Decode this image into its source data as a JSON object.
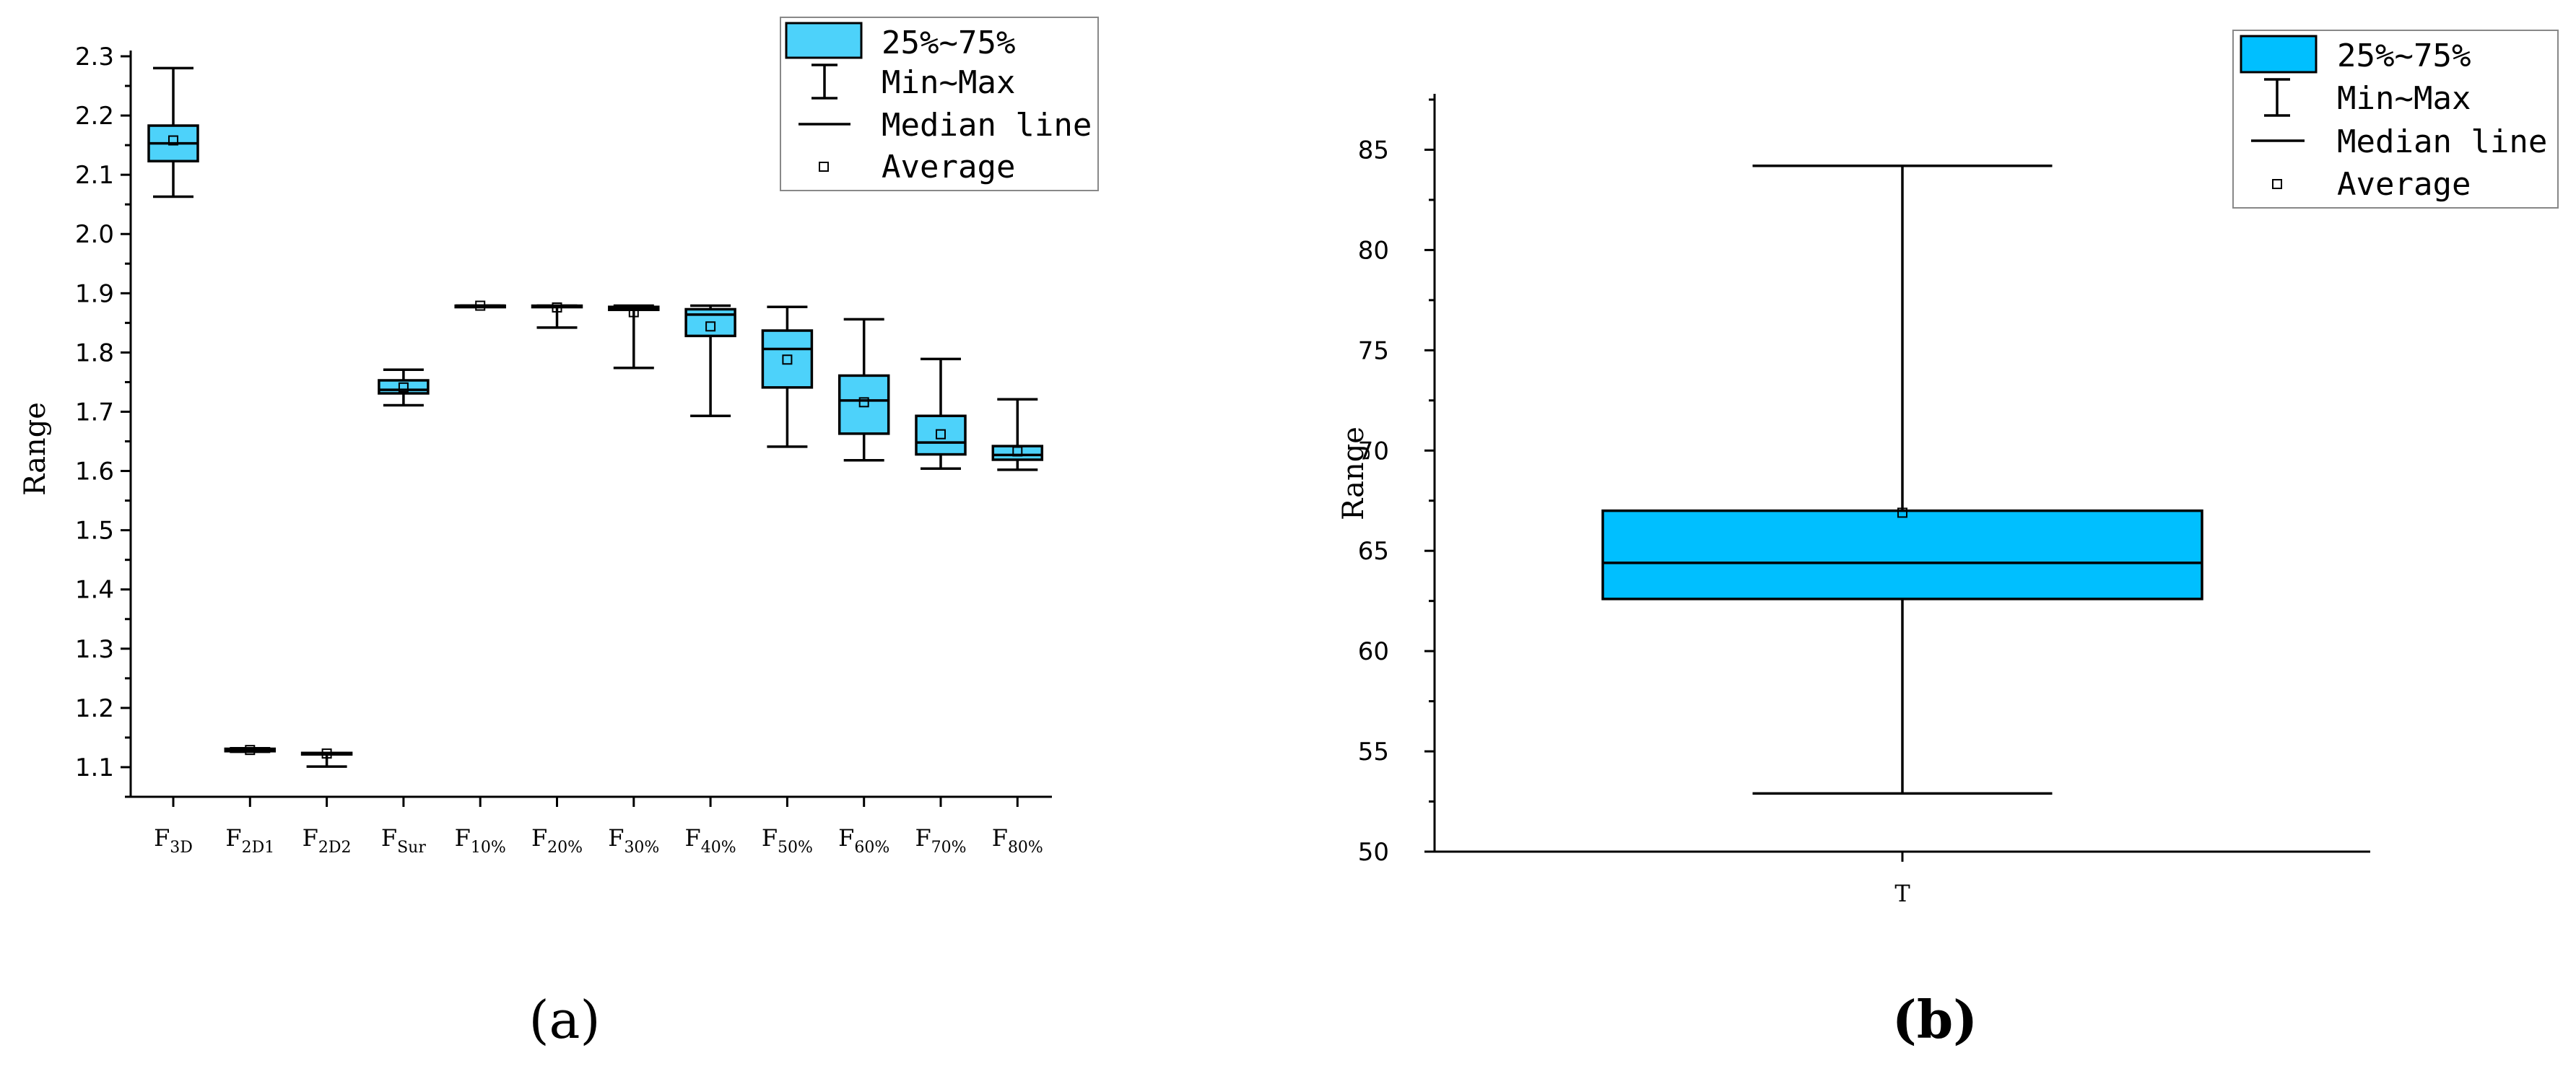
{
  "chart_data": [
    {
      "panel": "a",
      "type": "box",
      "ylabel": "Range",
      "ylim": [
        1.05,
        2.3
      ],
      "yticks": [
        "1.1",
        "1.2",
        "1.3",
        "1.4",
        "1.5",
        "1.6",
        "1.7",
        "1.8",
        "1.9",
        "2.0",
        "2.1",
        "2.2",
        "2.3"
      ],
      "box_color": "#4dd2fa",
      "categories": [
        {
          "base": "F",
          "sub": "3D"
        },
        {
          "base": "F",
          "sub": "2D1"
        },
        {
          "base": "F",
          "sub": "2D2"
        },
        {
          "base": "F",
          "sub": "Sur"
        },
        {
          "base": "F",
          "sub": "10%"
        },
        {
          "base": "F",
          "sub": "20%"
        },
        {
          "base": "F",
          "sub": "30%"
        },
        {
          "base": "F",
          "sub": "40%"
        },
        {
          "base": "F",
          "sub": "50%"
        },
        {
          "base": "F",
          "sub": "60%"
        },
        {
          "base": "F",
          "sub": "70%"
        },
        {
          "base": "F",
          "sub": "80%"
        }
      ],
      "boxes": [
        {
          "min": 2.063,
          "q1": 2.123,
          "median": 2.153,
          "q3": 2.183,
          "max": 2.28,
          "mean": 2.158
        },
        {
          "min": 1.126,
          "q1": 1.127,
          "median": 1.128,
          "q3": 1.131,
          "max": 1.132,
          "mean": 1.129
        },
        {
          "min": 1.101,
          "q1": 1.123,
          "median": 1.123,
          "q3": 1.124,
          "max": 1.124,
          "mean": 1.123
        },
        {
          "min": 1.711,
          "q1": 1.731,
          "median": 1.737,
          "q3": 1.753,
          "max": 1.771,
          "mean": 1.741
        },
        {
          "min": 1.878,
          "q1": 1.878,
          "median": 1.879,
          "q3": 1.879,
          "max": 1.879,
          "mean": 1.879
        },
        {
          "min": 1.842,
          "q1": 1.878,
          "median": 1.878,
          "q3": 1.879,
          "max": 1.879,
          "mean": 1.876
        },
        {
          "min": 1.774,
          "q1": 1.872,
          "median": 1.875,
          "q3": 1.877,
          "max": 1.879,
          "mean": 1.868
        },
        {
          "min": 1.693,
          "q1": 1.828,
          "median": 1.864,
          "q3": 1.873,
          "max": 1.879,
          "mean": 1.844
        },
        {
          "min": 1.641,
          "q1": 1.741,
          "median": 1.806,
          "q3": 1.837,
          "max": 1.877,
          "mean": 1.788
        },
        {
          "min": 1.618,
          "q1": 1.663,
          "median": 1.719,
          "q3": 1.761,
          "max": 1.856,
          "mean": 1.716
        },
        {
          "min": 1.604,
          "q1": 1.628,
          "median": 1.648,
          "q3": 1.693,
          "max": 1.789,
          "mean": 1.662
        },
        {
          "min": 1.602,
          "q1": 1.619,
          "median": 1.627,
          "q3": 1.642,
          "max": 1.721,
          "mean": 1.633
        }
      ],
      "legend": [
        "25%~75%",
        "Min~Max",
        "Median line",
        "Average"
      ],
      "panel_label": "(a)"
    },
    {
      "panel": "b",
      "type": "box",
      "ylabel": "Range",
      "ylim": [
        50,
        87.5
      ],
      "yticks": [
        "50",
        "55",
        "60",
        "65",
        "70",
        "75",
        "80",
        "85"
      ],
      "box_color": "#00bfff",
      "categories": [
        {
          "base": "T",
          "sub": ""
        }
      ],
      "boxes": [
        {
          "min": 52.9,
          "q1": 62.6,
          "median": 64.4,
          "q3": 67.0,
          "max": 84.2,
          "mean": 66.9
        }
      ],
      "legend": [
        "25%~75%",
        "Min~Max",
        "Median line",
        "Average"
      ],
      "panel_label": "(b)"
    }
  ]
}
